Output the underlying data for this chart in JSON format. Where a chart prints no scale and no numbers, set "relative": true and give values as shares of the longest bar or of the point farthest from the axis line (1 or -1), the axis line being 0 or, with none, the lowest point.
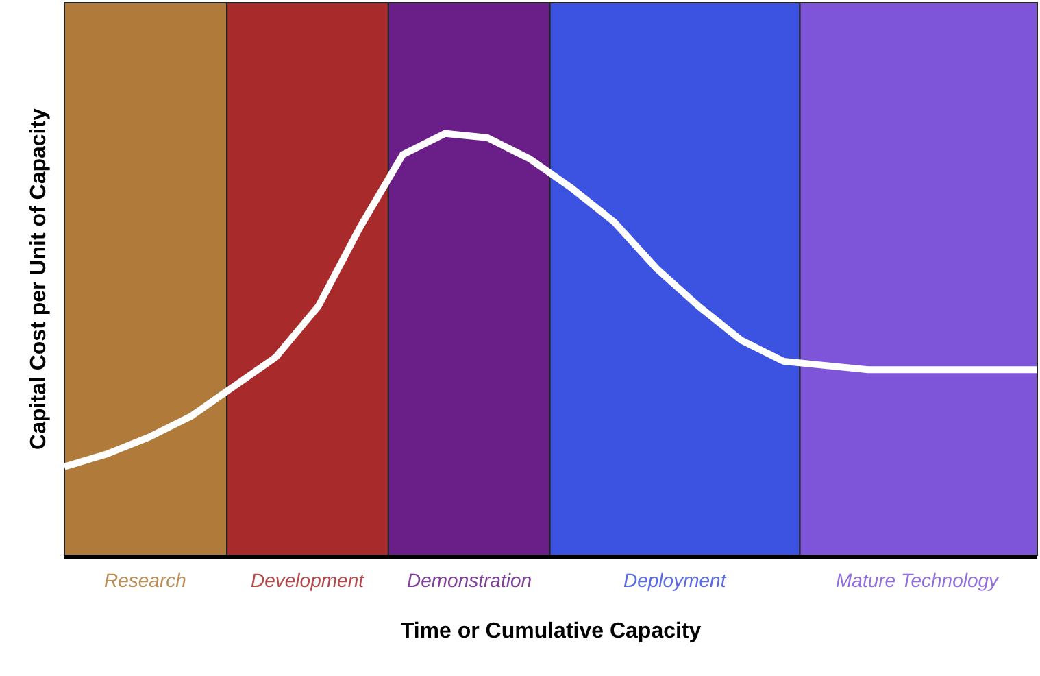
{
  "chart_data": {
    "type": "line",
    "relative": true,
    "xlabel": "Time or Cumulative Capacity",
    "ylabel": "Capital Cost per Unit of Capacity",
    "grid": false,
    "marker": "none",
    "line_style": "solid",
    "categories": [
      null,
      null,
      null,
      null,
      null,
      null,
      null,
      null,
      null,
      null,
      null,
      null,
      null,
      null,
      null,
      null,
      null,
      null,
      null,
      null,
      null,
      null,
      null,
      null
    ],
    "series": [
      {
        "color": "#ffffff",
        "values": [
          0.21,
          0.24,
          0.28,
          0.33,
          0.4,
          0.47,
          0.59,
          0.78,
          0.95,
          1.0,
          0.99,
          0.94,
          0.87,
          0.79,
          0.68,
          0.59,
          0.51,
          0.46,
          0.45,
          0.44,
          0.44,
          0.44,
          0.44,
          0.44
        ]
      }
    ],
    "annotations": [
      "Research",
      "Development",
      "Demonstration",
      "Deployment",
      "Mature Technology"
    ]
  }
}
